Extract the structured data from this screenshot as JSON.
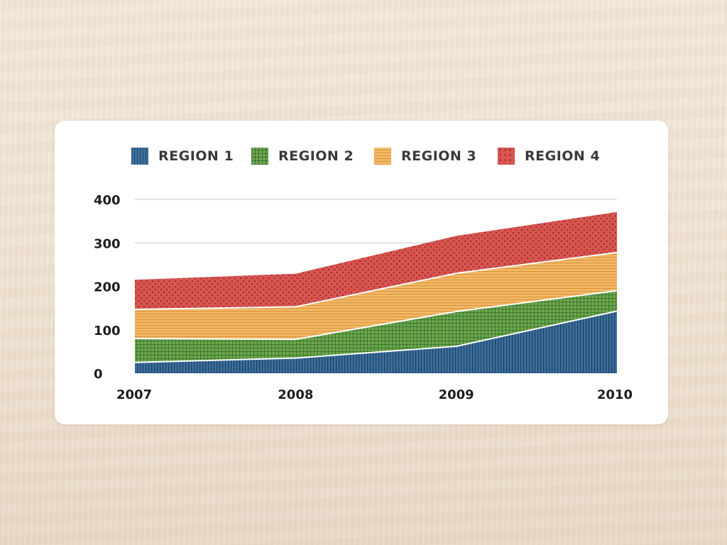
{
  "colors": {
    "region_1": "#3c6f9c",
    "region_2": "#6ea84f",
    "region_3": "#f2b967",
    "region_4": "#d85551",
    "grid": "#c8c8c8",
    "background": "#f1e4d4",
    "card": "#ffffff"
  },
  "chart_data": {
    "type": "area",
    "stacked": true,
    "title": "",
    "xlabel": "",
    "ylabel": "",
    "x": [
      "2007",
      "2008",
      "2009",
      "2010"
    ],
    "yticks": [
      "0",
      "100",
      "200",
      "300",
      "400"
    ],
    "ylim": [
      0,
      400
    ],
    "grid": true,
    "legend_position": "top",
    "series": [
      {
        "name": "REGION 1",
        "pattern": "vertical-stripes",
        "values": [
          25,
          35,
          62,
          143
        ]
      },
      {
        "name": "REGION 2",
        "pattern": "grid",
        "values": [
          55,
          43,
          80,
          47
        ]
      },
      {
        "name": "REGION 3",
        "pattern": "horizontal-stripes",
        "values": [
          67,
          75,
          88,
          88
        ]
      },
      {
        "name": "REGION 4",
        "pattern": "dots",
        "values": [
          68,
          76,
          86,
          93
        ]
      }
    ]
  }
}
